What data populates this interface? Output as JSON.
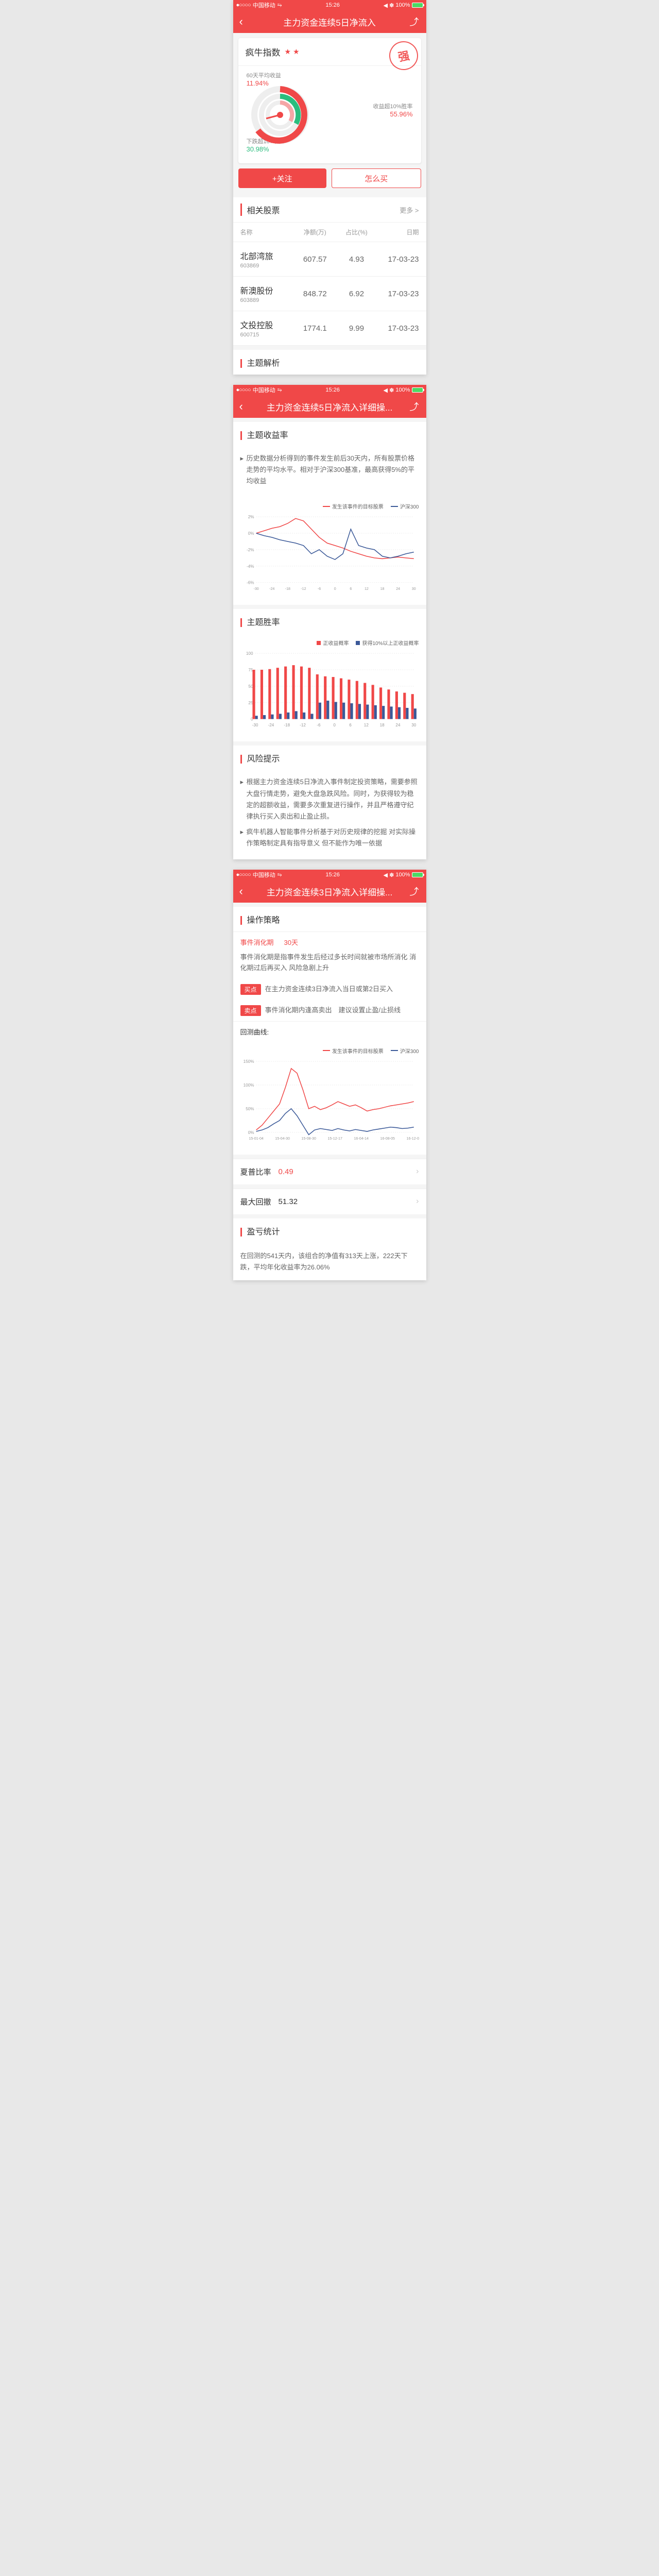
{
  "status": {
    "carrier": "中国移动",
    "time": "15:26",
    "battery": "100%"
  },
  "colors": {
    "primary": "#f04848",
    "green": "#2bbd7e",
    "blue": "#3b5998",
    "gray": "#999"
  },
  "screen1": {
    "title": "主力资金连续5日净流入",
    "index_name": "疯牛指数",
    "stars": "★ ★",
    "stamp": "强",
    "stats": {
      "avg60": {
        "label": "60天平均收益",
        "value": "11.94%"
      },
      "winrate": {
        "label": "收益超10%胜率",
        "value": "55.96%"
      },
      "droprate": {
        "label": "下跌超10%概率",
        "value": "30.98%"
      }
    },
    "btn_follow": "+关注",
    "btn_how": "怎么买",
    "related_title": "相关股票",
    "more": "更多 >",
    "cols": [
      "名称",
      "净额(万)",
      "占比(%)",
      "日期"
    ],
    "stocks": [
      {
        "name": "北部湾旅",
        "code": "603869",
        "net": "607.57",
        "pct": "4.93",
        "date": "17-03-23"
      },
      {
        "name": "新澳股份",
        "code": "603889",
        "net": "848.72",
        "pct": "6.92",
        "date": "17-03-23"
      },
      {
        "name": "文投控股",
        "code": "600715",
        "net": "1774.1",
        "pct": "9.99",
        "date": "17-03-23"
      }
    ],
    "analysis_title": "主题解析"
  },
  "screen2": {
    "title": "主力资金连续5日净流入详细操...",
    "yield_title": "主题收益率",
    "yield_desc": "历史数据分析得到的事件发生前后30天内，所有股票价格走势的平均水平。相对于沪深300基准，最高获得5%的平均收益",
    "legend_target": "发生该事件的目标股票",
    "legend_hs300": "沪深300",
    "yield_chart": {
      "xticks": [
        "-30",
        "-24",
        "-18",
        "-12",
        "-6",
        "0",
        "6",
        "12",
        "18",
        "24",
        "30"
      ],
      "yticks": [
        "-6%",
        "-4%",
        "-2%",
        "0%",
        "2%"
      ],
      "target": [
        0,
        0.3,
        0.6,
        0.8,
        1.2,
        1.8,
        1.5,
        0.5,
        -0.5,
        -1.2,
        -1.5,
        -1.8,
        -2.2,
        -2.5,
        -2.8,
        -3.0,
        -3.1,
        -3.0,
        -2.9,
        -3.0,
        -3.1
      ],
      "hs300": [
        0,
        -0.3,
        -0.5,
        -0.8,
        -1.0,
        -1.2,
        -1.5,
        -2.5,
        -2.0,
        -2.8,
        -3.2,
        -2.5,
        0.5,
        -1.5,
        -1.8,
        -2.0,
        -2.8,
        -3.0,
        -2.8,
        -2.5,
        -2.3
      ],
      "ymin": -6,
      "ymax": 2
    },
    "winrate_title": "主题胜率",
    "legend_pos": "正收益概率",
    "legend_pos10": "获得10%以上正收益概率",
    "winrate_chart": {
      "xticks": [
        "-30",
        "-24",
        "-18",
        "-12",
        "-6",
        "0",
        "6",
        "12",
        "18",
        "24",
        "30"
      ],
      "yticks": [
        "0",
        "25",
        "50",
        "75",
        "100"
      ],
      "red": [
        75,
        75,
        76,
        78,
        80,
        82,
        80,
        78,
        68,
        65,
        64,
        62,
        60,
        58,
        55,
        52,
        48,
        45,
        42,
        40,
        38
      ],
      "blue": [
        5,
        6,
        7,
        8,
        10,
        12,
        10,
        8,
        25,
        28,
        26,
        25,
        24,
        23,
        22,
        21,
        20,
        19,
        18,
        17,
        16
      ]
    },
    "risk_title": "风险提示",
    "risk_items": [
      "根据主力资金连续5日净流入事件制定投资策略，需要参照大盘行情走势，避免大盘急跌风险。同时，为获得较为稳定的超额收益，需要多次重复进行操作，并且严格遵守纪律执行买入卖出和止盈止损。",
      "疯牛机器人智能事件分析基于对历史规律的挖掘 对实际操作策略制定具有指导意义 但不能作为唯一依据"
    ]
  },
  "screen3": {
    "title": "主力资金连续3日净流入详细操...",
    "strategy_title": "操作策略",
    "digest_label": "事件消化期",
    "digest_days": "30天",
    "digest_desc": "事件消化期是指事件发生后经过多长时间就被市场所消化 消化期过后再买入 风险急剧上升",
    "buy_tag": "买点",
    "buy_text": "在主力资金连续3日净流入当日或第2日买入",
    "sell_tag": "卖点",
    "sell_text": "事件消化期内逢高卖出　建议设置止盈/止损线",
    "backtest_label": "回测曲线:",
    "backtest_chart": {
      "xticks": [
        "15-01-04",
        "15-04-30",
        "15-08-30",
        "15-12-17",
        "16-04-14",
        "16-08-05",
        "16-12-02"
      ],
      "yticks": [
        "0%",
        "50%",
        "100%",
        "150%"
      ],
      "target": [
        5,
        15,
        30,
        45,
        60,
        95,
        135,
        125,
        90,
        50,
        55,
        48,
        52,
        58,
        65,
        60,
        55,
        58,
        52,
        45,
        48,
        50,
        53,
        56,
        58,
        60,
        62,
        65
      ],
      "hs300": [
        2,
        5,
        10,
        18,
        25,
        40,
        50,
        35,
        15,
        -5,
        5,
        8,
        6,
        4,
        8,
        5,
        3,
        6,
        4,
        2,
        5,
        7,
        9,
        11,
        10,
        8,
        9,
        11
      ],
      "ymin": 0,
      "ymax": 150
    },
    "sharpe_label": "夏普比率",
    "sharpe_val": "0.49",
    "drawdown_label": "最大回撤",
    "drawdown_val": "51.32",
    "pnl_title": "盈亏统计",
    "pnl_text": "在回测的541天内，该组合的净值有313天上涨，222天下跌，平均年化收益率为26.06%"
  }
}
